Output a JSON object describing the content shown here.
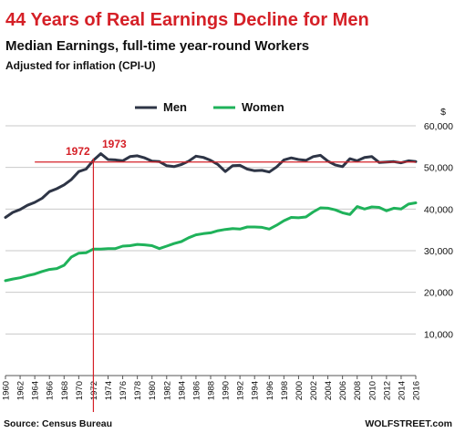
{
  "chart_data": {
    "type": "line",
    "title": "44 Years of Real Earnings Decline for Men",
    "subtitle": "Median Earnings, full-time year-round Workers",
    "subsubtitle": "Adjusted for inflation (CPI-U)",
    "ylabel": "$",
    "ylim": [
      0,
      60000
    ],
    "yticks": [
      10000,
      20000,
      30000,
      40000,
      50000,
      60000
    ],
    "ytick_labels": [
      "10,000",
      "20,000",
      "30,000",
      "40,000",
      "50,000",
      "60,000"
    ],
    "xlim": [
      1960,
      2016
    ],
    "xticks": [
      1960,
      1962,
      1964,
      1966,
      1968,
      1970,
      1972,
      1974,
      1976,
      1978,
      1980,
      1982,
      1984,
      1986,
      1988,
      1990,
      1992,
      1994,
      1996,
      1998,
      2000,
      2002,
      2004,
      2006,
      2008,
      2010,
      2012,
      2014,
      2016
    ],
    "grid": "horizontal",
    "legend_position": "top",
    "x": [
      1960,
      1961,
      1962,
      1963,
      1964,
      1965,
      1966,
      1967,
      1968,
      1969,
      1970,
      1971,
      1972,
      1973,
      1974,
      1975,
      1976,
      1977,
      1978,
      1979,
      1980,
      1981,
      1982,
      1983,
      1984,
      1985,
      1986,
      1987,
      1988,
      1989,
      1990,
      1991,
      1992,
      1993,
      1994,
      1995,
      1996,
      1997,
      1998,
      1999,
      2000,
      2001,
      2002,
      2003,
      2004,
      2005,
      2006,
      2007,
      2008,
      2009,
      2010,
      2011,
      2012,
      2013,
      2014,
      2015,
      2016
    ],
    "series": [
      {
        "name": "Men",
        "color": "#2e3546",
        "values": [
          38000,
          39200,
          39900,
          40900,
          41600,
          42600,
          44200,
          44900,
          45800,
          47100,
          49000,
          49600,
          51700,
          53300,
          51900,
          51800,
          51600,
          52600,
          52800,
          52300,
          51500,
          51400,
          50400,
          50200,
          50700,
          51500,
          52700,
          52400,
          51700,
          50700,
          49000,
          50400,
          50500,
          49600,
          49200,
          49300,
          48900,
          50100,
          51800,
          52300,
          51900,
          51700,
          52600,
          52900,
          51500,
          50600,
          50200,
          52100,
          51600,
          52400,
          52600,
          51200,
          51300,
          51400,
          51100,
          51600,
          51400
        ]
      },
      {
        "name": "Women",
        "color": "#1fb25a",
        "values": [
          22800,
          23200,
          23500,
          24000,
          24400,
          25000,
          25500,
          25700,
          26500,
          28500,
          29400,
          29500,
          30400,
          30400,
          30500,
          30500,
          31100,
          31200,
          31500,
          31400,
          31200,
          30500,
          31100,
          31700,
          32200,
          33100,
          33800,
          34100,
          34300,
          34800,
          35100,
          35300,
          35200,
          35700,
          35700,
          35600,
          35200,
          36100,
          37200,
          38000,
          37900,
          38100,
          39300,
          40300,
          40200,
          39800,
          39100,
          38700,
          40600,
          40000,
          40500,
          40400,
          39600,
          40200,
          40000,
          41200,
          41500
        ]
      }
    ],
    "reference_line": {
      "y": 51300,
      "color": "#d52027"
    },
    "vertical_marker": {
      "x": 1972,
      "color": "#d52027"
    },
    "annotations": [
      {
        "text": "1972",
        "color": "#d52027"
      },
      {
        "text": "1973",
        "color": "#d52027"
      }
    ],
    "source": "Source: Census Bureau",
    "credit": "WOLFSTREET.com",
    "title_color": "#d52027"
  }
}
